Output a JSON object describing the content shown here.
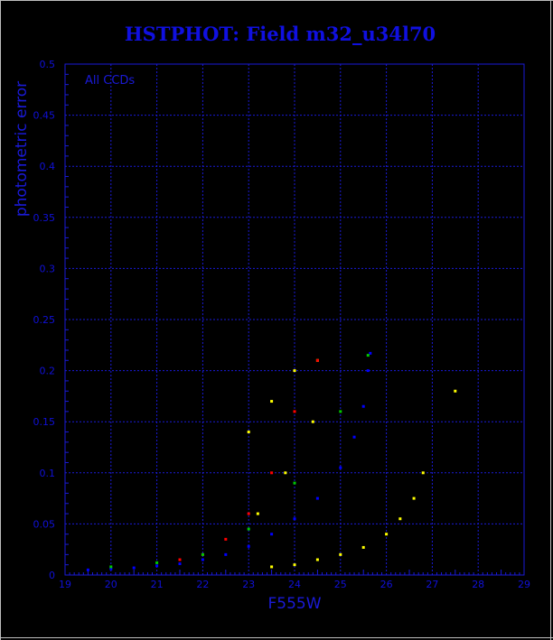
{
  "chart_data": {
    "type": "scatter",
    "title": "HSTPHOT: Field m32_u34l70",
    "xlabel": "F555W",
    "ylabel": "photometric error",
    "annotation": "All CCDs",
    "xlim": [
      19,
      29
    ],
    "ylim": [
      0,
      0.5
    ],
    "x_ticks": [
      "19",
      "20",
      "21",
      "22",
      "23",
      "24",
      "25",
      "26",
      "27",
      "28",
      "29"
    ],
    "y_ticks": [
      "0",
      "0.05",
      "0.1",
      "0.15",
      "0.2",
      "0.25",
      "0.3",
      "0.35",
      "0.4",
      "0.45",
      "0.5"
    ],
    "grid": true,
    "series": [
      {
        "color": "#0000ff",
        "points": [
          [
            19.5,
            0.005
          ],
          [
            20.0,
            0.006
          ],
          [
            20.5,
            0.007
          ],
          [
            21.0,
            0.009
          ],
          [
            21.5,
            0.011
          ],
          [
            22.0,
            0.015
          ],
          [
            22.5,
            0.02
          ],
          [
            23.0,
            0.028
          ],
          [
            23.5,
            0.04
          ],
          [
            24.0,
            0.055
          ],
          [
            24.5,
            0.075
          ],
          [
            25.0,
            0.105
          ],
          [
            25.3,
            0.135
          ],
          [
            25.5,
            0.165
          ],
          [
            25.6,
            0.2
          ],
          [
            25.65,
            0.217
          ]
        ]
      },
      {
        "color": "#ffff00",
        "points": [
          [
            23.0,
            0.14
          ],
          [
            23.5,
            0.17
          ],
          [
            24.0,
            0.2
          ],
          [
            24.5,
            0.21
          ],
          [
            23.2,
            0.06
          ],
          [
            23.8,
            0.1
          ],
          [
            24.4,
            0.15
          ],
          [
            23.5,
            0.008
          ],
          [
            24.0,
            0.01
          ],
          [
            24.5,
            0.015
          ],
          [
            25.0,
            0.02
          ],
          [
            25.5,
            0.027
          ],
          [
            26.0,
            0.04
          ],
          [
            26.3,
            0.055
          ],
          [
            26.6,
            0.075
          ],
          [
            26.8,
            0.1
          ],
          [
            27.5,
            0.18
          ]
        ]
      },
      {
        "color": "#ff0000",
        "points": [
          [
            21.5,
            0.015
          ],
          [
            22.0,
            0.02
          ],
          [
            22.5,
            0.035
          ],
          [
            23.0,
            0.06
          ],
          [
            23.5,
            0.1
          ],
          [
            24.0,
            0.16
          ],
          [
            24.5,
            0.21
          ]
        ]
      },
      {
        "color": "#00c800",
        "points": [
          [
            20.0,
            0.008
          ],
          [
            21.0,
            0.012
          ],
          [
            22.0,
            0.02
          ],
          [
            23.0,
            0.045
          ],
          [
            24.0,
            0.09
          ],
          [
            25.0,
            0.16
          ],
          [
            25.6,
            0.215
          ]
        ]
      }
    ]
  }
}
